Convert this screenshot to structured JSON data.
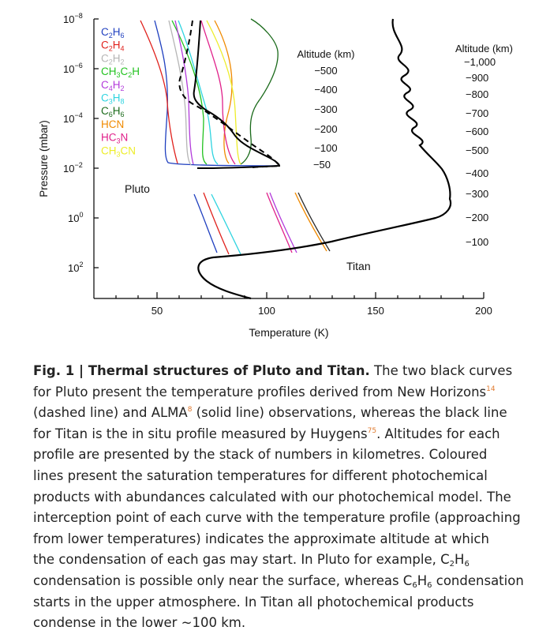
{
  "figure": {
    "y_axis_label": "Pressure (mbar)",
    "x_axis_label": "Temperature (K)",
    "y_ticks": [
      {
        "base": "10",
        "exp": "−8"
      },
      {
        "base": "10",
        "exp": "−6"
      },
      {
        "base": "10",
        "exp": "−4"
      },
      {
        "base": "10",
        "exp": "−2"
      },
      {
        "base": "10",
        "exp": "0"
      },
      {
        "base": "10",
        "exp": "2"
      }
    ],
    "x_ticks": [
      "50",
      "100",
      "150",
      "200"
    ],
    "legend": [
      {
        "base": "C",
        "s1": "2",
        "mid": "H",
        "s2": "6",
        "tail": "",
        "s3": "",
        "end": "",
        "color": "#1f3fbf"
      },
      {
        "base": "C",
        "s1": "2",
        "mid": "H",
        "s2": "4",
        "tail": "",
        "s3": "",
        "end": "",
        "color": "#e0211c"
      },
      {
        "base": "C",
        "s1": "2",
        "mid": "H",
        "s2": "2",
        "tail": "",
        "s3": "",
        "end": "",
        "color": "#b5b5b5"
      },
      {
        "base": "CH",
        "s1": "3",
        "mid": "C",
        "s2": "2",
        "tail": "H",
        "s3": "",
        "end": "",
        "color": "#22c21f"
      },
      {
        "base": "C",
        "s1": "4",
        "mid": "H",
        "s2": "2",
        "tail": "",
        "s3": "",
        "end": "",
        "color": "#b23adb"
      },
      {
        "base": "C",
        "s1": "3",
        "mid": "H",
        "s2": "8",
        "tail": "",
        "s3": "",
        "end": "",
        "color": "#2fd4e0"
      },
      {
        "base": "C",
        "s1": "6",
        "mid": "H",
        "s2": "6",
        "tail": "",
        "s3": "",
        "end": "",
        "color": "#1a6a1a"
      },
      {
        "base": "HCN",
        "s1": "",
        "mid": "",
        "s2": "",
        "tail": "",
        "s3": "",
        "end": "",
        "color": "#f08a00"
      },
      {
        "base": "HC",
        "s1": "3",
        "mid": "N",
        "s2": "",
        "tail": "",
        "s3": "",
        "end": "",
        "color": "#e0208a"
      },
      {
        "base": "CH",
        "s1": "3",
        "mid": "CN",
        "s2": "",
        "tail": "",
        "s3": "",
        "end": "",
        "color": "#eded2a"
      }
    ],
    "pluto_altitude": {
      "title": "Altitude (km)",
      "ticks": [
        "−500",
        "−400",
        "−300",
        "−200",
        "−100",
        "−50"
      ]
    },
    "titan_altitude": {
      "title": "Altitude (km)",
      "ticks": [
        "−1,000",
        "−900",
        "−800",
        "−700",
        "−600",
        "−500",
        "−400",
        "−300",
        "−200",
        "−100"
      ]
    },
    "labels": {
      "pluto": "Pluto",
      "titan": "Titan"
    }
  },
  "caption": {
    "title": "Fig. 1 | Thermal structures of Pluto and Titan.",
    "l1": " The two black curves",
    "l2a": "for Pluto present the temperature profiles derived from New Horizons",
    "ref1": "14",
    "l3a": "(dashed line) and ALMA",
    "ref2": "8",
    "l3b": " (solid line) observations, whereas the black line",
    "l4a": "for Titan is the in situ profile measured by Huygens",
    "ref3": "75",
    "l4b": ". Altitudes for each",
    "l5": "profile are presented by the stack of numbers in kilometres. Coloured",
    "l6": "lines present the saturation temperatures for different photochemical",
    "l7": "products with abundances calculated with our photochemical model. The",
    "l8": "interception point of each curve with the temperature profile (approaching",
    "l9": "from lower temperatures) indicates the approximate altitude at which",
    "l10a": "the condensation of each gas may start. In Pluto for example, C",
    "l10s1": "2",
    "l10b": "H",
    "l10s2": "6",
    "l11a": "condensation is possible only near the surface, whereas C",
    "l11s1": "6",
    "l11b": "H",
    "l11s2": "6",
    "l11c": " condensation",
    "l12": "starts in the upper atmosphere. In Titan all photochemical products",
    "l13": "condense in the lower ~100 km."
  }
}
